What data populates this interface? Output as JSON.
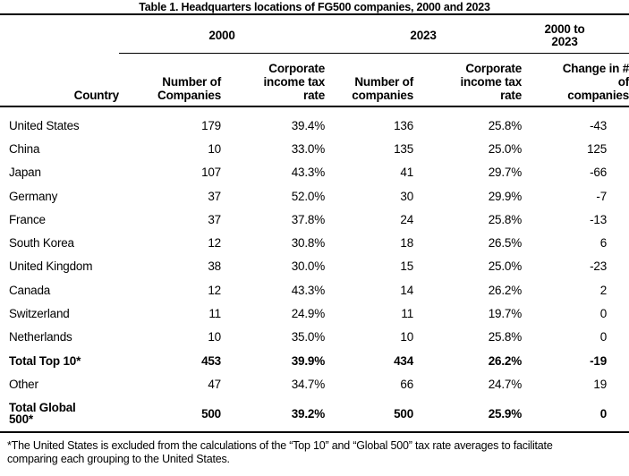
{
  "title": "Table 1. Headquarters locations of FG500 companies, 2000 and 2023",
  "table": {
    "spanners": {
      "year2000": "2000",
      "year2023": "2023",
      "change": "2000 to\n2023"
    },
    "headers": {
      "country": "Country",
      "companies_2000": "Number of\nCompanies",
      "taxrate_2000": "Corporate\nincome tax\nrate",
      "companies_2023": "Number of\ncompanies",
      "taxrate_2023": "Corporate\nincome tax\nrate",
      "change": "Change in #\nof\ncompanies"
    },
    "rows": [
      {
        "country": "United States",
        "n2000": "179",
        "t2000": "39.4%",
        "n2023": "136",
        "t2023": "25.8%",
        "change": "-43"
      },
      {
        "country": "China",
        "n2000": "10",
        "t2000": "33.0%",
        "n2023": "135",
        "t2023": "25.0%",
        "change": "125"
      },
      {
        "country": "Japan",
        "n2000": "107",
        "t2000": "43.3%",
        "n2023": "41",
        "t2023": "29.7%",
        "change": "-66"
      },
      {
        "country": "Germany",
        "n2000": "37",
        "t2000": "52.0%",
        "n2023": "30",
        "t2023": "29.9%",
        "change": "-7"
      },
      {
        "country": "France",
        "n2000": "37",
        "t2000": "37.8%",
        "n2023": "24",
        "t2023": "25.8%",
        "change": "-13"
      },
      {
        "country": "South Korea",
        "n2000": "12",
        "t2000": "30.8%",
        "n2023": "18",
        "t2023": "26.5%",
        "change": "6"
      },
      {
        "country": "United Kingdom",
        "n2000": "38",
        "t2000": "30.0%",
        "n2023": "15",
        "t2023": "25.0%",
        "change": "-23"
      },
      {
        "country": "Canada",
        "n2000": "12",
        "t2000": "43.3%",
        "n2023": "14",
        "t2023": "26.2%",
        "change": "2"
      },
      {
        "country": "Switzerland",
        "n2000": "11",
        "t2000": "24.9%",
        "n2023": "11",
        "t2023": "19.7%",
        "change": "0"
      },
      {
        "country": "Netherlands",
        "n2000": "10",
        "t2000": "35.0%",
        "n2023": "10",
        "t2023": "25.8%",
        "change": "0"
      },
      {
        "country": "Total Top 10*",
        "n2000": "453",
        "t2000": "39.9%",
        "n2023": "434",
        "t2023": "26.2%",
        "change": "-19"
      },
      {
        "country": "Other",
        "n2000": "47",
        "t2000": "34.7%",
        "n2023": "66",
        "t2023": "24.7%",
        "change": "19"
      },
      {
        "country": "Total Global\n500*",
        "n2000": "500",
        "t2000": "39.2%",
        "n2023": "500",
        "t2023": "25.9%",
        "change": "0"
      }
    ]
  },
  "footnote": "*The United States is excluded from the calculations of the “Top 10” and “Global 500” tax rate averages to facilitate comparing each grouping to the United States."
}
